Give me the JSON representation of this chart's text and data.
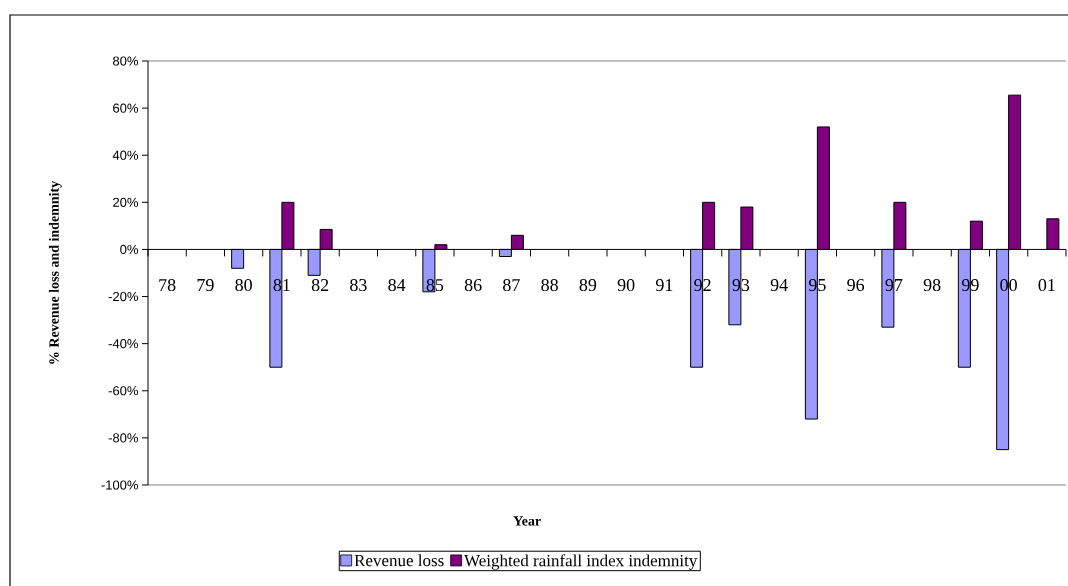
{
  "chart_data": {
    "type": "bar",
    "xlabel": "Year",
    "ylabel": "% Revenue loss and indemnity",
    "categories": [
      "78",
      "79",
      "80",
      "81",
      "82",
      "83",
      "84",
      "85",
      "86",
      "87",
      "88",
      "89",
      "90",
      "91",
      "92",
      "93",
      "94",
      "95",
      "96",
      "97",
      "98",
      "99",
      "00",
      "01"
    ],
    "series": [
      {
        "name": "Revenue loss",
        "color": "#9999ff",
        "values": [
          null,
          null,
          -8,
          -50,
          -11,
          null,
          null,
          -18,
          null,
          -3,
          null,
          null,
          null,
          null,
          -50,
          -32,
          null,
          -72,
          null,
          -33,
          null,
          -50,
          -85,
          null
        ]
      },
      {
        "name": "Weighted rainfall index indemnity",
        "color": "#800080",
        "values": [
          null,
          null,
          null,
          20,
          8.5,
          null,
          null,
          2,
          null,
          6,
          null,
          null,
          null,
          null,
          20,
          18,
          null,
          52,
          null,
          20,
          null,
          12,
          65.5,
          13
        ]
      }
    ],
    "ylim": [
      -100,
      80
    ],
    "yticks": [
      {
        "value": -100,
        "label": "-100%"
      },
      {
        "value": -80,
        "label": "-80%"
      },
      {
        "value": -60,
        "label": "-60%"
      },
      {
        "value": -40,
        "label": "-40%"
      },
      {
        "value": -20,
        "label": "-20%"
      },
      {
        "value": 0,
        "label": "0%"
      },
      {
        "value": 20,
        "label": "20%"
      },
      {
        "value": 40,
        "label": "40%"
      },
      {
        "value": 60,
        "label": "60%"
      },
      {
        "value": 80,
        "label": "80%"
      }
    ],
    "grid": false,
    "legend": "bottom"
  }
}
